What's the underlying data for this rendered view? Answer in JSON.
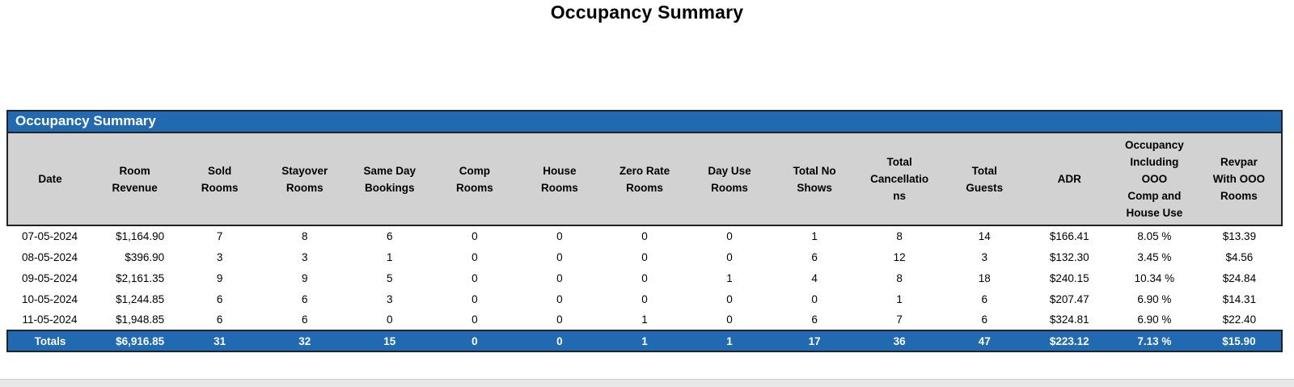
{
  "page_title": "Occupancy Summary",
  "report": {
    "section_title": "Occupancy Summary",
    "columns": [
      "Date",
      "Room\nRevenue",
      "Sold\nRooms",
      "Stayover\nRooms",
      "Same Day\nBookings",
      "Comp\nRooms",
      "House\nRooms",
      "Zero Rate\nRooms",
      "Day Use\nRooms",
      "Total No\nShows",
      "Total\nCancellatio\nns",
      "Total\nGuests",
      "ADR",
      "Occupancy\nIncluding\nOOO\nComp and\nHouse Use",
      "Revpar\nWith OOO\nRooms"
    ],
    "rows": [
      [
        "07-05-2024",
        "$1,164.90",
        "7",
        "8",
        "6",
        "0",
        "0",
        "0",
        "0",
        "1",
        "8",
        "14",
        "$166.41",
        "8.05 %",
        "$13.39"
      ],
      [
        "08-05-2024",
        "$396.90",
        "3",
        "3",
        "1",
        "0",
        "0",
        "0",
        "0",
        "6",
        "12",
        "3",
        "$132.30",
        "3.45 %",
        "$4.56"
      ],
      [
        "09-05-2024",
        "$2,161.35",
        "9",
        "9",
        "5",
        "0",
        "0",
        "0",
        "1",
        "4",
        "8",
        "18",
        "$240.15",
        "10.34 %",
        "$24.84"
      ],
      [
        "10-05-2024",
        "$1,244.85",
        "6",
        "6",
        "3",
        "0",
        "0",
        "0",
        "0",
        "0",
        "1",
        "6",
        "$207.47",
        "6.90 %",
        "$14.31"
      ],
      [
        "11-05-2024",
        "$1,948.85",
        "6",
        "6",
        "0",
        "0",
        "0",
        "1",
        "0",
        "6",
        "7",
        "6",
        "$324.81",
        "6.90 %",
        "$22.40"
      ]
    ],
    "totals": [
      "Totals",
      "$6,916.85",
      "31",
      "32",
      "15",
      "0",
      "0",
      "1",
      "1",
      "17",
      "36",
      "47",
      "$223.12",
      "7.13 %",
      "$15.90"
    ],
    "colors": {
      "accent_blue": "#2169B0",
      "header_gray": "#D2D2D2",
      "border_dark": "#202226",
      "bottom_strip": "#E8E8E8"
    }
  }
}
